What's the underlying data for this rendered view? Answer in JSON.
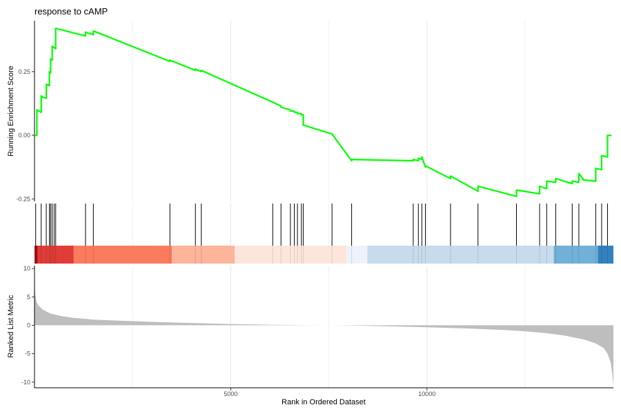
{
  "chart_data": {
    "type": "line",
    "title": "response to cAMP",
    "xlabel": "Rank in Ordered Dataset",
    "xlim": [
      0,
      14750
    ],
    "x_ticks": [
      5000,
      10000
    ],
    "x_tick_labels": [
      "5000",
      "10000"
    ],
    "grid": "vertical major and minor lines",
    "enrichment": {
      "ylabel": "Running Enrichment Score",
      "ylim": [
        -0.26,
        0.45
      ],
      "y_ticks": [
        -0.25,
        0.0,
        0.25
      ],
      "y_tick_labels": [
        "-0.25",
        "0.00",
        "0.25"
      ],
      "line_color": "#00ff00",
      "x": [
        0,
        30,
        60,
        60,
        170,
        170,
        200,
        300,
        300,
        380,
        380,
        410,
        410,
        450,
        450,
        540,
        540,
        1300,
        1300,
        1500,
        1500,
        3450,
        3450,
        4100,
        4100,
        4250,
        4250,
        6070,
        6070,
        6280,
        6280,
        6520,
        6520,
        6620,
        6620,
        6700,
        6700,
        6800,
        6800,
        6850,
        6850,
        7580,
        7580,
        8080,
        8080,
        9650,
        9650,
        9780,
        9780,
        9870,
        9870,
        9960,
        9960,
        10600,
        10600,
        11300,
        11300,
        12280,
        12280,
        12870,
        12870,
        13050,
        13050,
        13280,
        13280,
        13700,
        13700,
        13870,
        13870,
        13970,
        13970,
        14300,
        14300,
        14450,
        14450,
        14600,
        14600,
        14700
      ],
      "y": [
        0.0,
        0.0,
        0.0,
        0.1,
        0.09,
        0.155,
        0.15,
        0.145,
        0.2,
        0.195,
        0.25,
        0.245,
        0.3,
        0.295,
        0.35,
        0.34,
        0.42,
        0.39,
        0.405,
        0.395,
        0.41,
        0.29,
        0.295,
        0.255,
        0.26,
        0.25,
        0.255,
        0.13,
        0.13,
        0.115,
        0.11,
        0.1,
        0.095,
        0.095,
        0.09,
        0.09,
        0.085,
        0.085,
        0.08,
        0.08,
        0.04,
        0.005,
        0.005,
        -0.1,
        -0.095,
        -0.1,
        -0.095,
        -0.1,
        -0.09,
        -0.095,
        -0.085,
        -0.125,
        -0.12,
        -0.17,
        -0.16,
        -0.22,
        -0.2,
        -0.24,
        -0.215,
        -0.23,
        -0.2,
        -0.21,
        -0.18,
        -0.185,
        -0.17,
        -0.19,
        -0.18,
        -0.185,
        -0.15,
        -0.17,
        -0.175,
        -0.18,
        -0.13,
        -0.135,
        -0.08,
        -0.085,
        0.0,
        0.0
      ]
    },
    "hits": {
      "positions": [
        30,
        170,
        300,
        380,
        410,
        450,
        500,
        540,
        1300,
        1500,
        3450,
        4100,
        4250,
        6070,
        6280,
        6520,
        6620,
        6700,
        6800,
        6850,
        7580,
        8080,
        9650,
        9780,
        9870,
        9960,
        10600,
        11300,
        12280,
        12870,
        13050,
        13280,
        13700,
        13870,
        14300,
        14450,
        14600
      ]
    },
    "color_bands": {
      "segments": [
        {
          "from": 0,
          "to": 80,
          "color": "#a50f15"
        },
        {
          "from": 80,
          "to": 1000,
          "color": "#e03d38"
        },
        {
          "from": 1000,
          "to": 3500,
          "color": "#fb7b5f"
        },
        {
          "from": 3500,
          "to": 5100,
          "color": "#fcb49b"
        },
        {
          "from": 5100,
          "to": 7950,
          "color": "#fee5db"
        },
        {
          "from": 7950,
          "to": 8480,
          "color": "#eef3fb"
        },
        {
          "from": 8480,
          "to": 13230,
          "color": "#c6dbec"
        },
        {
          "from": 13230,
          "to": 14350,
          "color": "#72b1d7"
        },
        {
          "from": 14350,
          "to": 14750,
          "color": "#3182bd"
        }
      ]
    },
    "ranked_metric": {
      "ylabel": "Ranked List Metric",
      "ylim": [
        -11,
        10.5
      ],
      "y_ticks": [
        10,
        5,
        0,
        -5,
        -10
      ],
      "y_tick_labels": [
        "10",
        "5",
        "0",
        "-5",
        "-10"
      ],
      "fill_color": "#bebebe",
      "x": [
        0,
        5,
        20,
        50,
        100,
        200,
        400,
        700,
        1000,
        1500,
        2000,
        3000,
        4000,
        5000,
        6000,
        7000,
        7600,
        8000,
        8500,
        9000,
        10000,
        11000,
        12000,
        12500,
        13000,
        13500,
        14000,
        14300,
        14500,
        14600,
        14680,
        14720,
        14750
      ],
      "values": [
        9.5,
        7.5,
        5.5,
        4.2,
        3.5,
        2.8,
        2.1,
        1.6,
        1.3,
        1.0,
        0.85,
        0.6,
        0.4,
        0.22,
        0.1,
        0.02,
        0.0,
        -0.03,
        -0.1,
        -0.18,
        -0.35,
        -0.55,
        -0.85,
        -1.05,
        -1.35,
        -1.8,
        -2.5,
        -3.2,
        -4.0,
        -5.0,
        -6.5,
        -8.5,
        -10.7
      ]
    }
  }
}
